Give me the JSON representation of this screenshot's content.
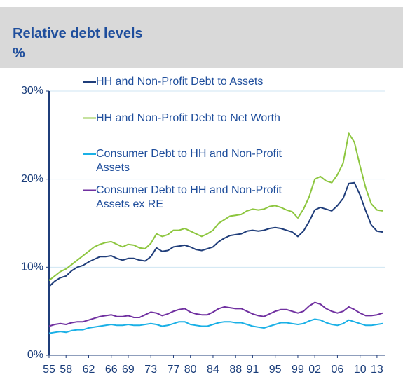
{
  "chart_data": {
    "type": "line",
    "title": "Relative debt levels",
    "subtitle": "%",
    "x": [
      1955,
      1956,
      1957,
      1958,
      1959,
      1960,
      1961,
      1962,
      1963,
      1964,
      1965,
      1966,
      1967,
      1968,
      1969,
      1970,
      1971,
      1972,
      1973,
      1974,
      1975,
      1976,
      1977,
      1978,
      1979,
      1980,
      1981,
      1982,
      1983,
      1984,
      1985,
      1986,
      1987,
      1988,
      1989,
      1990,
      1991,
      1992,
      1993,
      1994,
      1995,
      1996,
      1997,
      1998,
      1999,
      2000,
      2001,
      2002,
      2003,
      2004,
      2005,
      2006,
      2007,
      2008,
      2009,
      2010,
      2011,
      2012,
      2013,
      2014
    ],
    "series": [
      {
        "name": "HH and Non-Profit Debt to Assets",
        "color": "#1f3d7a",
        "values": [
          7.8,
          8.4,
          8.8,
          9.0,
          9.6,
          10.0,
          10.2,
          10.6,
          10.9,
          11.2,
          11.2,
          11.3,
          11.0,
          10.8,
          11.0,
          11.0,
          10.8,
          10.7,
          11.2,
          12.2,
          11.8,
          11.9,
          12.3,
          12.4,
          12.5,
          12.3,
          12.0,
          11.9,
          12.1,
          12.3,
          12.9,
          13.3,
          13.6,
          13.7,
          13.8,
          14.1,
          14.2,
          14.1,
          14.2,
          14.4,
          14.5,
          14.4,
          14.2,
          14.0,
          13.5,
          14.1,
          15.2,
          16.5,
          16.8,
          16.6,
          16.4,
          17.0,
          17.8,
          19.5,
          19.6,
          18.2,
          16.4,
          14.8,
          14.1,
          14.0
        ]
      },
      {
        "name": "HH and Non-Profit Debt to Net Worth",
        "color": "#8dc63f",
        "values": [
          8.5,
          9.0,
          9.5,
          9.8,
          10.3,
          10.8,
          11.3,
          11.8,
          12.3,
          12.6,
          12.8,
          12.9,
          12.6,
          12.3,
          12.6,
          12.5,
          12.2,
          12.1,
          12.7,
          13.8,
          13.5,
          13.7,
          14.2,
          14.2,
          14.4,
          14.1,
          13.8,
          13.5,
          13.8,
          14.2,
          15.0,
          15.4,
          15.8,
          15.9,
          16.0,
          16.4,
          16.6,
          16.5,
          16.6,
          16.9,
          17.0,
          16.8,
          16.5,
          16.3,
          15.6,
          16.6,
          18.0,
          20.0,
          20.3,
          19.8,
          19.6,
          20.5,
          21.8,
          25.2,
          24.2,
          21.5,
          19.0,
          17.2,
          16.5,
          16.4
        ]
      },
      {
        "name": "Consumer Debt to HH and Non-Profit Assets",
        "color": "#1ab0e6",
        "values": [
          2.5,
          2.6,
          2.7,
          2.6,
          2.8,
          2.9,
          2.9,
          3.1,
          3.2,
          3.3,
          3.4,
          3.5,
          3.4,
          3.4,
          3.5,
          3.4,
          3.4,
          3.5,
          3.6,
          3.5,
          3.3,
          3.4,
          3.6,
          3.8,
          3.8,
          3.5,
          3.4,
          3.3,
          3.3,
          3.5,
          3.7,
          3.8,
          3.8,
          3.7,
          3.7,
          3.5,
          3.3,
          3.2,
          3.1,
          3.3,
          3.5,
          3.7,
          3.7,
          3.6,
          3.5,
          3.6,
          3.9,
          4.1,
          4.0,
          3.7,
          3.5,
          3.4,
          3.6,
          4.0,
          3.8,
          3.6,
          3.4,
          3.4,
          3.5,
          3.6
        ]
      },
      {
        "name": "Consumer Debt to HH and Non-Profit Assets ex RE",
        "color": "#7030a0",
        "values": [
          3.3,
          3.5,
          3.6,
          3.5,
          3.7,
          3.8,
          3.8,
          4.0,
          4.2,
          4.4,
          4.5,
          4.6,
          4.4,
          4.4,
          4.5,
          4.3,
          4.3,
          4.6,
          4.9,
          4.8,
          4.5,
          4.7,
          5.0,
          5.2,
          5.3,
          4.9,
          4.7,
          4.6,
          4.6,
          4.9,
          5.3,
          5.5,
          5.4,
          5.3,
          5.3,
          5.0,
          4.7,
          4.5,
          4.4,
          4.7,
          5.0,
          5.2,
          5.2,
          5.0,
          4.8,
          5.0,
          5.6,
          6.0,
          5.8,
          5.3,
          5.0,
          4.8,
          5.0,
          5.5,
          5.2,
          4.8,
          4.5,
          4.5,
          4.6,
          4.8
        ]
      }
    ],
    "xlim": [
      1955,
      2014.5
    ],
    "xticks": [
      {
        "value": 1955,
        "label": "55"
      },
      {
        "value": 1958,
        "label": "58"
      },
      {
        "value": 1962,
        "label": "62"
      },
      {
        "value": 1966,
        "label": "66"
      },
      {
        "value": 1969,
        "label": "69"
      },
      {
        "value": 1973,
        "label": "73"
      },
      {
        "value": 1977,
        "label": "77"
      },
      {
        "value": 1980,
        "label": "80"
      },
      {
        "value": 1984,
        "label": "84"
      },
      {
        "value": 1988,
        "label": "88"
      },
      {
        "value": 1991,
        "label": "91"
      },
      {
        "value": 1995,
        "label": "95"
      },
      {
        "value": 1999,
        "label": "99"
      },
      {
        "value": 2002,
        "label": "02"
      },
      {
        "value": 2006,
        "label": "06"
      },
      {
        "value": 2010,
        "label": "10"
      },
      {
        "value": 2013,
        "label": "13"
      }
    ],
    "ylim": [
      0,
      30
    ],
    "yticks": [
      {
        "value": 0,
        "label": "0%"
      },
      {
        "value": 10,
        "label": "10%"
      },
      {
        "value": 20,
        "label": "20%"
      },
      {
        "value": 30,
        "label": "30%"
      }
    ],
    "grid": true,
    "legend": "upper left"
  }
}
